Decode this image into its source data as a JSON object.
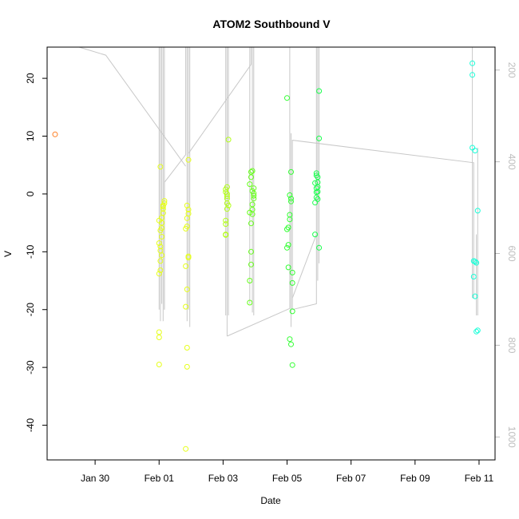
{
  "chart_data": {
    "type": "scatter",
    "title": "ATOM2 Southbound V",
    "xlabel": "Date",
    "ylabel": "V",
    "x_type": "date",
    "xlim": [
      "2013-01-28T12:00",
      "2013-02-11T12:00"
    ],
    "ylim": [
      -46,
      25.4
    ],
    "x_ticks": [
      {
        "date": "2013-01-30",
        "label": "Jan 30"
      },
      {
        "date": "2013-02-01",
        "label": "Feb 01"
      },
      {
        "date": "2013-02-03",
        "label": "Feb 03"
      },
      {
        "date": "2013-02-05",
        "label": "Feb 05"
      },
      {
        "date": "2013-02-07",
        "label": "Feb 07"
      },
      {
        "date": "2013-02-09",
        "label": "Feb 09"
      },
      {
        "date": "2013-02-11",
        "label": "Feb 11"
      }
    ],
    "y_ticks": [
      -40,
      -30,
      -20,
      -10,
      0,
      10,
      20
    ],
    "right_axis": {
      "color": "#bdbdbd",
      "lim": [
        1050,
        150
      ],
      "ticks": [
        200,
        400,
        600,
        800,
        1000
      ]
    },
    "grid": false,
    "legend": "none",
    "marker": "open-circle",
    "trace_color": "#c8c8c8",
    "point_groups": [
      {
        "color": "#ff7f24",
        "x": [
          "2013-01-28T18:00"
        ],
        "y": [
          10.3
        ]
      },
      {
        "color": "#e6ff1a",
        "x": [
          "2013-02-01T00:00",
          "2013-02-01T00:00",
          "2013-02-01T00:00",
          "2013-02-01T01:00",
          "2013-02-01T01:00",
          "2013-02-01T01:00",
          "2013-02-01T01:00",
          "2013-02-01T02:00",
          "2013-02-01T02:00",
          "2013-02-01T02:00",
          "2013-02-01T02:00",
          "2013-02-01T03:00",
          "2013-02-01T03:00",
          "2013-02-01T03:00",
          "2013-02-01T04:00",
          "2013-02-01T04:00",
          "2013-02-01T01:00",
          "2013-02-01T03:00",
          "2013-02-01T00:00",
          "2013-02-01T00:00",
          "2013-02-01T01:00",
          "2013-02-01T00:00",
          "2013-02-01T02:00",
          "2013-02-01T20:00",
          "2013-02-01T20:00",
          "2013-02-01T21:00",
          "2013-02-01T21:00",
          "2013-02-01T21:00",
          "2013-02-01T22:00",
          "2013-02-01T22:00",
          "2013-02-01T20:00",
          "2013-02-01T22:00",
          "2013-02-01T21:00",
          "2013-02-01T21:00",
          "2013-02-01T22:00",
          "2013-02-01T22:00",
          "2013-02-01T21:00",
          "2013-02-01T20:00"
        ],
        "y": [
          -29.5,
          -24.8,
          -13.8,
          -13.2,
          -11.6,
          -9.8,
          -9.1,
          -7.4,
          -5.9,
          -5.0,
          -4.1,
          -3.3,
          -2.6,
          -2.0,
          -1.6,
          -1.2,
          4.7,
          -2.2,
          -23.9,
          -8.5,
          -6.3,
          -4.6,
          -10.6,
          -44.1,
          -19.5,
          -26.6,
          -29.9,
          -16.5,
          -11.0,
          -10.8,
          -6.0,
          5.9,
          -5.6,
          -4.2,
          -3.4,
          -2.7,
          -2.0,
          -12.5
        ]
      },
      {
        "color": "#b3ff1a",
        "x": [
          "2013-02-03T02:00",
          "2013-02-03T02:00",
          "2013-02-03T02:00",
          "2013-02-03T03:00",
          "2013-02-03T03:00",
          "2013-02-03T03:00",
          "2013-02-03T03:00",
          "2013-02-03T02:00",
          "2013-02-03T02:00",
          "2013-02-03T03:00",
          "2013-02-03T04:00",
          "2013-02-03T04:00",
          "2013-02-03T03:00",
          "2013-02-03T02:00"
        ],
        "y": [
          -7.0,
          -5.2,
          -4.6,
          -2.6,
          -1.6,
          -0.8,
          0.0,
          0.3,
          0.8,
          1.2,
          9.4,
          -2.0,
          -0.4,
          -7.1
        ]
      },
      {
        "color": "#66ff1a",
        "x": [
          "2013-02-03T20:00",
          "2013-02-03T20:00",
          "2013-02-03T21:00",
          "2013-02-03T21:00",
          "2013-02-03T21:00",
          "2013-02-03T22:00",
          "2013-02-03T22:00",
          "2013-02-03T22:00",
          "2013-02-03T23:00",
          "2013-02-03T23:00",
          "2013-02-03T23:00",
          "2013-02-03T20:00",
          "2013-02-03T21:00",
          "2013-02-03T21:00",
          "2013-02-03T22:00",
          "2013-02-03T22:00",
          "2013-02-03T23:00",
          "2013-02-03T20:00"
        ],
        "y": [
          -18.8,
          -15.0,
          -12.2,
          -10.0,
          -5.1,
          -3.5,
          -2.7,
          -1.8,
          -0.8,
          0.1,
          1.0,
          1.7,
          2.9,
          3.8,
          4.0,
          0.5,
          -0.3,
          -3.2
        ]
      },
      {
        "color": "#33ff33",
        "x": [
          "2013-02-05T00:00",
          "2013-02-05T00:00",
          "2013-02-05T00:00",
          "2013-02-05T01:00",
          "2013-02-05T01:00",
          "2013-02-05T02:00",
          "2013-02-05T02:00",
          "2013-02-05T03:00",
          "2013-02-05T03:00",
          "2013-02-05T03:00",
          "2013-02-05T04:00",
          "2013-02-05T04:00",
          "2013-02-05T04:00",
          "2013-02-05T04:00",
          "2013-02-05T02:00",
          "2013-02-05T01:00",
          "2013-02-05T03:00",
          "2013-02-05T02:00"
        ],
        "y": [
          16.6,
          -6.1,
          -9.3,
          -8.8,
          -12.7,
          -3.6,
          -0.2,
          -0.8,
          3.8,
          -26.0,
          -29.6,
          -20.3,
          -15.4,
          -13.6,
          -25.1,
          -5.8,
          -1.3,
          -4.4
        ]
      },
      {
        "color": "#1aff4d",
        "x": [
          "2013-02-05T21:00",
          "2013-02-05T21:00",
          "2013-02-05T22:00",
          "2013-02-05T22:00",
          "2013-02-05T22:00",
          "2013-02-05T22:00",
          "2013-02-05T23:00",
          "2013-02-05T23:00",
          "2013-02-05T23:00",
          "2013-02-05T23:00",
          "2013-02-06T00:00",
          "2013-02-06T00:00",
          "2013-02-06T00:00",
          "2013-02-05T23:00",
          "2013-02-05T22:00",
          "2013-02-05T21:00"
        ],
        "y": [
          -7.0,
          -1.5,
          -0.6,
          0.3,
          1.0,
          3.6,
          2.9,
          2.0,
          1.2,
          0.4,
          9.6,
          17.8,
          -9.3,
          -0.9,
          3.2,
          1.9
        ]
      },
      {
        "color": "#1affd9",
        "x": [
          "2013-02-10T19:00",
          "2013-02-10T19:00",
          "2013-02-10T19:00",
          "2013-02-10T20:00",
          "2013-02-10T20:00",
          "2013-02-10T21:00",
          "2013-02-10T21:00",
          "2013-02-10T22:00",
          "2013-02-10T22:00",
          "2013-02-10T23:00",
          "2013-02-10T23:00",
          "2013-02-10T21:00"
        ],
        "y": [
          22.6,
          20.6,
          8.0,
          -14.3,
          -11.6,
          -17.7,
          7.5,
          -11.9,
          -23.8,
          -2.9,
          -23.6,
          -11.7
        ]
      }
    ],
    "trace_lines": [
      {
        "points": [
          [
            "2013-01-29T12:00",
            25.4
          ],
          [
            "2013-01-30T08:00",
            24.0
          ],
          [
            "2013-02-01T20:00",
            4.8
          ]
        ]
      },
      {
        "points": [
          [
            "2013-02-01T00:00",
            -20.0
          ],
          [
            "2013-02-01T00:00",
            25.4
          ]
        ]
      },
      {
        "points": [
          [
            "2013-02-01T01:00",
            -22.0
          ],
          [
            "2013-02-01T01:00",
            25.4
          ]
        ]
      },
      {
        "points": [
          [
            "2013-02-01T02:00",
            -19.0
          ],
          [
            "2013-02-01T02:00",
            25.4
          ]
        ]
      },
      {
        "points": [
          [
            "2013-02-01T03:00",
            -22.0
          ],
          [
            "2013-02-01T03:00",
            25.4
          ]
        ]
      },
      {
        "points": [
          [
            "2013-02-01T04:00",
            -20.0
          ],
          [
            "2013-02-01T04:00",
            25.4
          ]
        ]
      },
      {
        "points": [
          [
            "2013-02-01T04:00",
            -20.0
          ],
          [
            "2013-02-01T04:00",
            2.0
          ],
          [
            "2013-02-01T20:00",
            6.8
          ],
          [
            "2013-02-01T20:00",
            25.4
          ]
        ]
      },
      {
        "points": [
          [
            "2013-02-01T21:00",
            -22.0
          ],
          [
            "2013-02-01T21:00",
            25.4
          ]
        ]
      },
      {
        "points": [
          [
            "2013-02-01T22:00",
            -20.0
          ],
          [
            "2013-02-01T22:00",
            25.4
          ]
        ]
      },
      {
        "points": [
          [
            "2013-02-01T22:00",
            7.0
          ],
          [
            "2013-02-03T21:00",
            22.4
          ],
          [
            "2013-02-03T21:00",
            25.4
          ]
        ]
      },
      {
        "points": [
          [
            "2013-02-01T23:00",
            -23.0
          ],
          [
            "2013-02-01T23:00",
            25.4
          ]
        ]
      },
      {
        "points": [
          [
            "2013-02-03T02:00",
            -21.0
          ],
          [
            "2013-02-03T02:00",
            25.4
          ]
        ]
      },
      {
        "points": [
          [
            "2013-02-03T03:00",
            -24.6
          ],
          [
            "2013-02-03T03:00",
            25.4
          ]
        ]
      },
      {
        "points": [
          [
            "2013-02-03T04:00",
            -21.0
          ],
          [
            "2013-02-03T04:00",
            25.4
          ]
        ]
      },
      {
        "points": [
          [
            "2013-02-03T03:00",
            -24.6
          ],
          [
            "2013-02-05T02:00",
            -19.8
          ],
          [
            "2013-02-05T02:00",
            25.4
          ]
        ]
      },
      {
        "points": [
          [
            "2013-02-03T20:00",
            -19.0
          ],
          [
            "2013-02-03T20:00",
            25.4
          ]
        ]
      },
      {
        "points": [
          [
            "2013-02-03T22:00",
            -20.5
          ],
          [
            "2013-02-03T22:00",
            25.4
          ]
        ]
      },
      {
        "points": [
          [
            "2013-02-03T23:00",
            -21.0
          ],
          [
            "2013-02-03T23:00",
            25.4
          ]
        ]
      },
      {
        "points": [
          [
            "2013-02-05T03:00",
            -23.0
          ],
          [
            "2013-02-05T03:00",
            10.5
          ]
        ]
      },
      {
        "points": [
          [
            "2013-02-05T04:00",
            -20.0
          ],
          [
            "2013-02-05T04:00",
            9.3
          ],
          [
            "2013-02-10T20:00",
            5.4
          ],
          [
            "2013-02-10T20:00",
            -18.0
          ]
        ]
      },
      {
        "points": [
          [
            "2013-02-05T04:00",
            -20.0
          ],
          [
            "2013-02-05T22:00",
            -19.0
          ],
          [
            "2013-02-05T22:00",
            25.4
          ]
        ]
      },
      {
        "points": [
          [
            "2013-02-05T04:00",
            -18.0
          ],
          [
            "2013-02-05T22:00",
            -7.0
          ]
        ]
      },
      {
        "points": [
          [
            "2013-02-05T23:00",
            -15.0
          ],
          [
            "2013-02-05T23:00",
            25.4
          ]
        ]
      },
      {
        "points": [
          [
            "2013-02-06T00:00",
            -12.0
          ],
          [
            "2013-02-06T00:00",
            25.4
          ]
        ]
      },
      {
        "points": [
          [
            "2013-02-10T19:00",
            -18.0
          ],
          [
            "2013-02-10T19:00",
            25.4
          ]
        ]
      },
      {
        "points": [
          [
            "2013-02-10T22:00",
            -21.0
          ],
          [
            "2013-02-10T22:00",
            -7.0
          ]
        ]
      },
      {
        "points": [
          [
            "2013-02-10T23:00",
            -21.0
          ],
          [
            "2013-02-10T23:00",
            8.0
          ]
        ]
      }
    ]
  }
}
